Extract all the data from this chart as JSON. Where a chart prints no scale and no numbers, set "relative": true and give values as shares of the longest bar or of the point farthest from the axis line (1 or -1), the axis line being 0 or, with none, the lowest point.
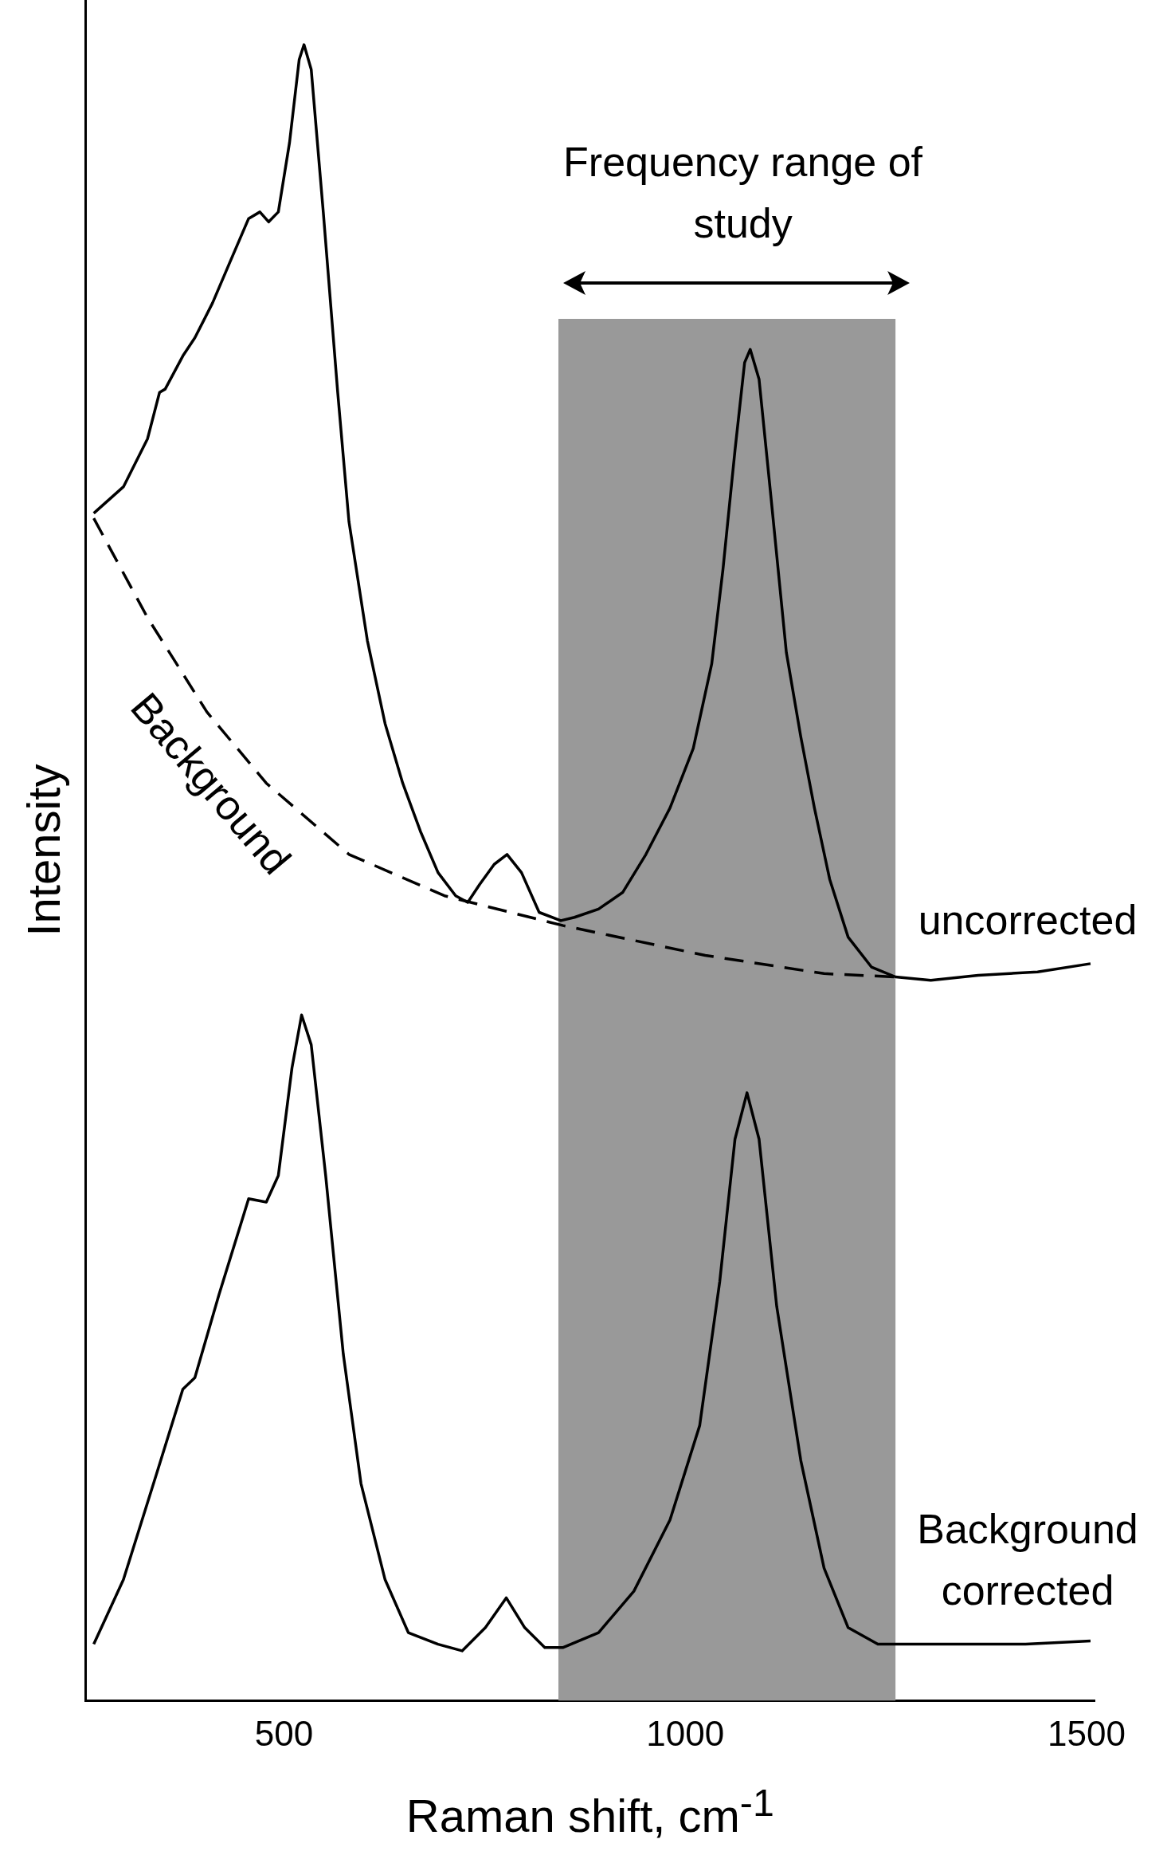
{
  "chart_data": {
    "type": "line",
    "xlabel": "Raman shift, cm$^{-1}$",
    "ylabel": "Intensity",
    "relative": true,
    "xlim": [
      253,
      1510
    ],
    "xticks": [
      500,
      1000,
      1500
    ],
    "grid": false,
    "legend": false,
    "marker": "none",
    "bands": [
      {
        "axis": "x",
        "from": 842,
        "to": 1262,
        "label": "Frequency range of study",
        "color": "#999999"
      }
    ],
    "series": [
      {
        "name": "uncorrected",
        "color": "#000000",
        "line_style": "solid",
        "x": [
          263,
          300,
          330,
          345,
          352,
          374,
          389,
          411,
          433,
          456,
          470,
          481,
          493,
          507,
          519,
          525,
          534,
          549,
          567,
          581,
          604,
          626,
          648,
          670,
          692,
          714,
          729,
          744,
          762,
          778,
          796,
          818,
          845,
          862,
          892,
          922,
          951,
          981,
          1010,
          1033,
          1047,
          1062,
          1074,
          1081,
          1092,
          1107,
          1126,
          1144,
          1161,
          1180,
          1203,
          1232,
          1262,
          1306,
          1365,
          1439,
          1505
        ],
        "values": [
          0.717,
          0.733,
          0.762,
          0.79,
          0.792,
          0.812,
          0.823,
          0.844,
          0.869,
          0.895,
          0.899,
          0.893,
          0.899,
          0.941,
          0.991,
          1.0,
          0.985,
          0.899,
          0.79,
          0.712,
          0.64,
          0.59,
          0.554,
          0.525,
          0.5,
          0.486,
          0.482,
          0.493,
          0.505,
          0.511,
          0.5,
          0.476,
          0.471,
          0.473,
          0.478,
          0.488,
          0.511,
          0.539,
          0.575,
          0.626,
          0.683,
          0.755,
          0.808,
          0.816,
          0.798,
          0.726,
          0.633,
          0.582,
          0.539,
          0.496,
          0.461,
          0.443,
          0.437,
          0.435,
          0.438,
          0.44,
          0.445
        ]
      },
      {
        "name": "Background",
        "color": "#000000",
        "line_style": "dashed",
        "x": [
          263,
          330,
          404,
          478,
          581,
          700,
          848,
          1025,
          1173,
          1262
        ],
        "values": [
          0.714,
          0.654,
          0.597,
          0.554,
          0.511,
          0.486,
          0.468,
          0.45,
          0.439,
          0.437
        ]
      },
      {
        "name": "Background corrected",
        "color": "#000000",
        "line_style": "solid",
        "x": [
          263,
          300,
          342,
          374,
          389,
          419,
          456,
          478,
          493,
          510,
          522,
          534,
          552,
          574,
          596,
          626,
          655,
          692,
          722,
          751,
          777,
          800,
          825,
          848,
          892,
          936,
          981,
          1018,
          1043,
          1062,
          1077,
          1092,
          1114,
          1144,
          1173,
          1203,
          1240,
          1321,
          1424,
          1505
        ],
        "values": [
          0.034,
          0.073,
          0.138,
          0.188,
          0.195,
          0.245,
          0.303,
          0.301,
          0.317,
          0.382,
          0.414,
          0.396,
          0.317,
          0.209,
          0.131,
          0.073,
          0.041,
          0.034,
          0.03,
          0.044,
          0.062,
          0.044,
          0.032,
          0.032,
          0.041,
          0.066,
          0.109,
          0.166,
          0.253,
          0.339,
          0.367,
          0.339,
          0.238,
          0.145,
          0.08,
          0.044,
          0.034,
          0.034,
          0.034,
          0.036
        ]
      }
    ]
  }
}
